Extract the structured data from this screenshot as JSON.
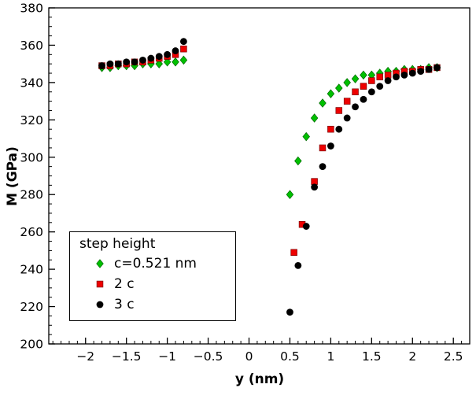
{
  "chart_data": {
    "type": "scatter",
    "title": "",
    "xlabel": "y (nm)",
    "ylabel": "M (GPa)",
    "xlim": [
      -2.45,
      2.7
    ],
    "ylim": [
      200,
      380
    ],
    "xticks": [
      -2,
      -1.5,
      -1,
      -0.5,
      0,
      0.5,
      1,
      1.5,
      2,
      2.5
    ],
    "yticks": [
      200,
      220,
      240,
      260,
      280,
      300,
      320,
      340,
      360,
      380
    ],
    "x_minor_step": 0.1,
    "y_minor_step": 5,
    "grid": false,
    "legend": {
      "title": "step height",
      "position": "lower left"
    },
    "series": [
      {
        "name": "c=0.521 nm",
        "marker": "diamond",
        "color": "#00c000",
        "edge": "#006600",
        "points": [
          [
            -1.8,
            348
          ],
          [
            -1.7,
            348
          ],
          [
            -1.6,
            349
          ],
          [
            -1.5,
            349
          ],
          [
            -1.4,
            349
          ],
          [
            -1.3,
            350
          ],
          [
            -1.2,
            350
          ],
          [
            -1.1,
            350
          ],
          [
            -1.0,
            351
          ],
          [
            -0.9,
            351
          ],
          [
            -0.8,
            352
          ],
          [
            0.5,
            280
          ],
          [
            0.6,
            298
          ],
          [
            0.7,
            311
          ],
          [
            0.8,
            321
          ],
          [
            0.9,
            329
          ],
          [
            1.0,
            334
          ],
          [
            1.1,
            337
          ],
          [
            1.2,
            340
          ],
          [
            1.3,
            342
          ],
          [
            1.4,
            344
          ],
          [
            1.5,
            344
          ],
          [
            1.6,
            345
          ],
          [
            1.7,
            346
          ],
          [
            1.8,
            346
          ],
          [
            1.9,
            347
          ],
          [
            2.0,
            347
          ],
          [
            2.1,
            347
          ],
          [
            2.2,
            348
          ],
          [
            2.3,
            348
          ]
        ]
      },
      {
        "name": "2 c",
        "marker": "square",
        "color": "#ee0000",
        "edge": "#7a0000",
        "points": [
          [
            -1.8,
            349
          ],
          [
            -1.7,
            349
          ],
          [
            -1.6,
            350
          ],
          [
            -1.5,
            350
          ],
          [
            -1.4,
            351
          ],
          [
            -1.3,
            351
          ],
          [
            -1.2,
            352
          ],
          [
            -1.1,
            353
          ],
          [
            -1.0,
            354
          ],
          [
            -0.9,
            355
          ],
          [
            -0.8,
            358
          ],
          [
            0.55,
            249
          ],
          [
            0.65,
            264
          ],
          [
            0.8,
            287
          ],
          [
            0.9,
            305
          ],
          [
            1.0,
            315
          ],
          [
            1.1,
            325
          ],
          [
            1.2,
            330
          ],
          [
            1.3,
            335
          ],
          [
            1.4,
            338
          ],
          [
            1.5,
            341
          ],
          [
            1.6,
            343
          ],
          [
            1.7,
            344
          ],
          [
            1.8,
            345
          ],
          [
            1.9,
            346
          ],
          [
            2.0,
            346
          ],
          [
            2.1,
            347
          ],
          [
            2.2,
            347
          ],
          [
            2.3,
            348
          ]
        ]
      },
      {
        "name": "3 c",
        "marker": "circle",
        "color": "#000000",
        "edge": "",
        "points": [
          [
            -1.8,
            349
          ],
          [
            -1.7,
            350
          ],
          [
            -1.6,
            350
          ],
          [
            -1.5,
            351
          ],
          [
            -1.4,
            351
          ],
          [
            -1.3,
            352
          ],
          [
            -1.2,
            353
          ],
          [
            -1.1,
            354
          ],
          [
            -1.0,
            355
          ],
          [
            -0.9,
            357
          ],
          [
            -0.8,
            362
          ],
          [
            0.5,
            217
          ],
          [
            0.6,
            242
          ],
          [
            0.7,
            263
          ],
          [
            0.8,
            284
          ],
          [
            0.9,
            295
          ],
          [
            1.0,
            306
          ],
          [
            1.1,
            315
          ],
          [
            1.2,
            321
          ],
          [
            1.3,
            327
          ],
          [
            1.4,
            331
          ],
          [
            1.5,
            335
          ],
          [
            1.6,
            338
          ],
          [
            1.7,
            341
          ],
          [
            1.8,
            343
          ],
          [
            1.9,
            344
          ],
          [
            2.0,
            345
          ],
          [
            2.1,
            346
          ],
          [
            2.2,
            347
          ],
          [
            2.3,
            348
          ]
        ]
      }
    ]
  }
}
